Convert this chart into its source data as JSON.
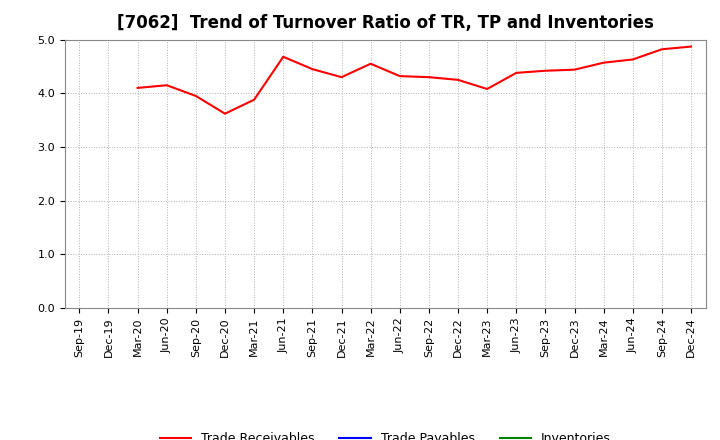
{
  "title": "[7062]  Trend of Turnover Ratio of TR, TP and Inventories",
  "x_labels": [
    "Sep-19",
    "Dec-19",
    "Mar-20",
    "Jun-20",
    "Sep-20",
    "Dec-20",
    "Mar-21",
    "Jun-21",
    "Sep-21",
    "Dec-21",
    "Mar-22",
    "Jun-22",
    "Sep-22",
    "Dec-22",
    "Mar-23",
    "Jun-23",
    "Sep-23",
    "Dec-23",
    "Mar-24",
    "Jun-24",
    "Sep-24",
    "Dec-24"
  ],
  "trade_receivables": [
    null,
    null,
    4.1,
    4.15,
    3.95,
    3.62,
    3.88,
    4.68,
    4.45,
    4.3,
    4.55,
    4.32,
    4.3,
    4.25,
    4.08,
    4.38,
    4.42,
    4.44,
    4.57,
    4.63,
    4.82,
    4.87
  ],
  "trade_payables": [
    null,
    null,
    null,
    null,
    null,
    null,
    null,
    null,
    null,
    null,
    null,
    null,
    null,
    null,
    null,
    null,
    null,
    null,
    null,
    null,
    null,
    null
  ],
  "inventories": [
    null,
    null,
    null,
    null,
    null,
    null,
    null,
    null,
    null,
    null,
    null,
    null,
    null,
    null,
    null,
    null,
    null,
    null,
    null,
    null,
    null,
    null
  ],
  "tr_color": "#ff0000",
  "tp_color": "#0000ff",
  "inv_color": "#008000",
  "ylim": [
    0.0,
    5.0
  ],
  "yticks": [
    0.0,
    1.0,
    2.0,
    3.0,
    4.0,
    5.0
  ],
  "background_color": "#ffffff",
  "grid_color": "#b0b0b0",
  "legend_labels": [
    "Trade Receivables",
    "Trade Payables",
    "Inventories"
  ],
  "title_fontsize": 12,
  "tick_fontsize": 8,
  "legend_fontsize": 9
}
